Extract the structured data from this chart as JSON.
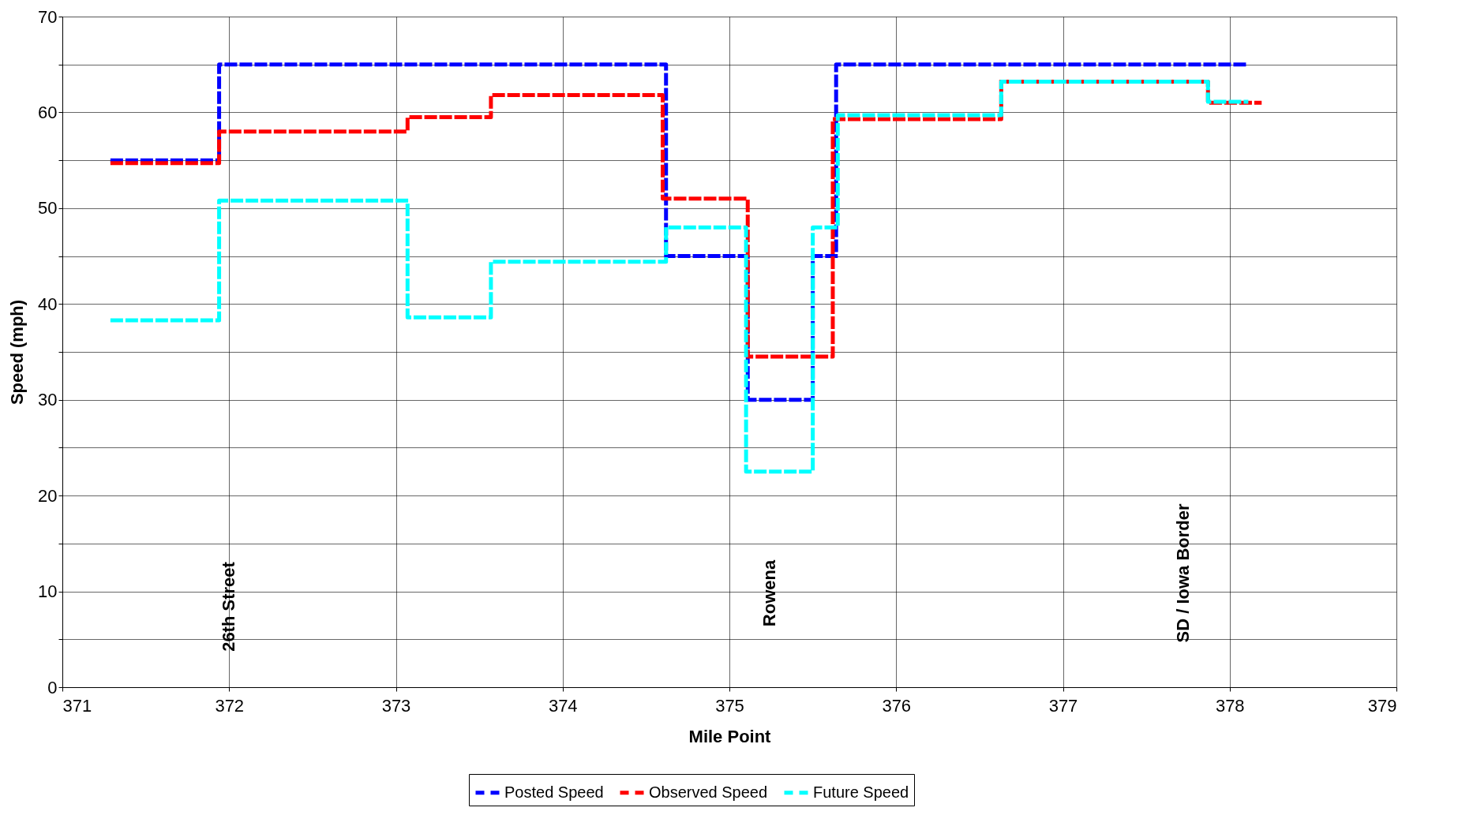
{
  "chart_data": {
    "type": "step",
    "xlabel": "Mile Point",
    "ylabel": "Speed (mph)",
    "xlim": [
      371,
      379
    ],
    "xticks": [
      371,
      372,
      373,
      374,
      375,
      376,
      377,
      378,
      379
    ],
    "ylim": [
      0,
      70
    ],
    "yticks": [
      0,
      {
        "value": 5,
        "label": null
      },
      10,
      {
        "value": 15,
        "label": null
      },
      20,
      {
        "value": 25,
        "label": null
      },
      30,
      {
        "value": 35,
        "label": null
      },
      40,
      {
        "value": 45,
        "label": null
      },
      50,
      {
        "value": 55,
        "label": null
      },
      60,
      {
        "value": 65,
        "label": null
      },
      70
    ],
    "grid": true,
    "legend": "bottom",
    "marker": "none",
    "line_style": "dashed",
    "series": [
      {
        "name": "Posted Speed",
        "color": "#0000ff",
        "x": [
          371.3,
          371.94,
          374.62,
          375.11,
          375.5,
          375.64,
          378.12
        ],
        "values": [
          55,
          65,
          45,
          30,
          45,
          65,
          65
        ]
      },
      {
        "name": "Observed Speed",
        "color": "#ff0000",
        "x": [
          371.3,
          371.94,
          373.07,
          373.57,
          374.6,
          375.11,
          375.62,
          376.63,
          377.87,
          378.18
        ],
        "values": [
          54.7,
          58,
          59.5,
          61.8,
          51,
          34.5,
          59.3,
          63.2,
          61,
          61
        ]
      },
      {
        "name": "Future Speed",
        "color": "#00ffff",
        "x": [
          371.3,
          371.94,
          373.07,
          373.57,
          374.62,
          375.1,
          375.5,
          375.65,
          376.63,
          377.87,
          378.1
        ],
        "values": [
          38.3,
          50.8,
          38.6,
          44.4,
          48,
          22.5,
          48,
          59.7,
          63.2,
          61.1,
          61.1
        ]
      }
    ],
    "annotations": [
      "26th Street",
      "Rowena",
      "SD / Iowa Border"
    ]
  }
}
